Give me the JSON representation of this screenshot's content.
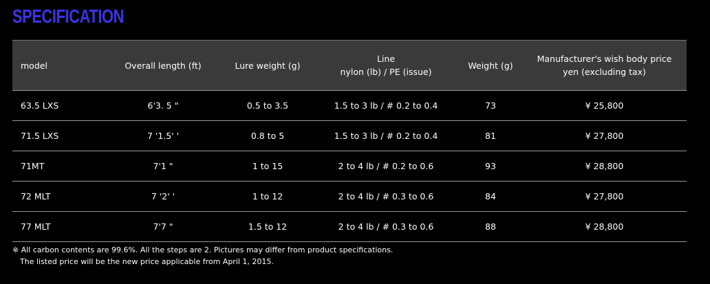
{
  "title": "SPECIFICATION",
  "table": {
    "headers": [
      "model",
      "Overall length (ft)",
      "Lure weight (g)",
      "Line",
      "Weight (g)",
      "Manufacturer's wish body price"
    ],
    "headers_line2": [
      "",
      "",
      "",
      "nylon (lb) / PE (issue)",
      "",
      "yen (excluding tax)"
    ],
    "rows": [
      [
        "63.5 LXS",
        "6'3. 5 \"",
        "0.5 to 3.5",
        "1.5 to 3 lb / # 0.2 to 0.4",
        "73",
        "¥ 25,800"
      ],
      [
        "71.5 LXS",
        "7 '1.5' '",
        "0.8 to 5",
        "1.5 to 3 lb / # 0.2 to 0.4",
        "81",
        "¥ 27,800"
      ],
      [
        "71MT",
        "7'1 \"",
        "1 to 15",
        "2 to 4 lb / # 0.2 to 0.6",
        "93",
        "¥ 28,800"
      ],
      [
        "72 MLT",
        "7 '2' '",
        "1 to 12",
        "2 to 4 lb / # 0.3 to 0.6",
        "84",
        "¥ 27,800"
      ],
      [
        "77 MLT",
        "7'7 \"",
        "1.5 to 12",
        "2 to 4 lb / # 0.3 to 0.6",
        "88",
        "¥ 28,800"
      ]
    ]
  },
  "notes": [
    "※ All carbon contents are 99.6%. All the steps are 2. Pictures may differ from product specifications.",
    "The listed price will be the new price applicable from April 1, 2015."
  ],
  "colors": {
    "title": "#3d33e8",
    "header_bg": "#3a3a3a"
  }
}
